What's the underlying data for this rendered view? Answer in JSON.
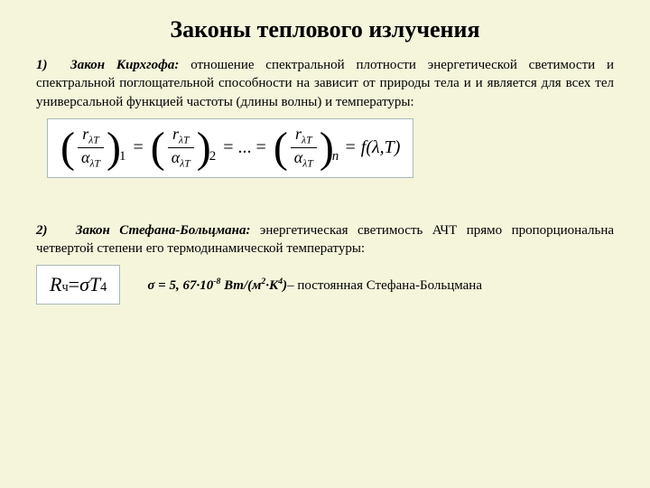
{
  "title": "Законы теплового излучения",
  "law1": {
    "number": "1)",
    "name": "Закон Кирхгофа:",
    "text": " отношение спектральной плотности энергетической светимости и спектральной поглощательной способности на зависит от природы тела и и является для всех тел универсальной функцией частоты (длины волны) и температуры:",
    "num_sym": "r",
    "den_sym": "α",
    "subscript_idx": "λT",
    "outer_sub1": "1",
    "outer_sub2": "2",
    "outer_subn": "n",
    "eq": "=",
    "dots": "= ... =",
    "rhs": "= f(λ,T)"
  },
  "law2": {
    "number": "2)",
    "name": "Закон Стефана-Больцмана:",
    "text": " энергетическая светимость АЧТ прямо пропорциональна четвертой степени его термодинамической температуры:",
    "formula_R": "R",
    "formula_Rsub": "ч",
    "formula_eq": " = ",
    "formula_sigma": "σT",
    "formula_exp": "4",
    "sigma_prefix": "σ = 5, 67·10",
    "sigma_exp": "-8",
    "sigma_units": " Вт/(м",
    "sigma_unit_exp1": "2",
    "sigma_mid": "·К",
    "sigma_unit_exp2": "4",
    "sigma_close": ")",
    "sigma_suffix": "– постоянная Стефана-Больцмана"
  },
  "colors": {
    "background": "#f5f5dc",
    "formula_bg": "#ffffff",
    "formula_border": "#a8b8b8",
    "text": "#000000"
  }
}
